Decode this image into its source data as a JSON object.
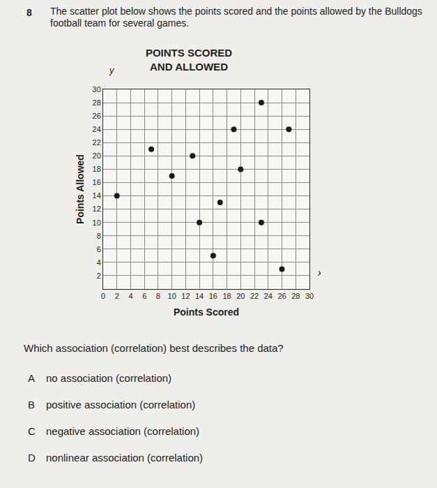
{
  "chart_data": {
    "type": "scatter",
    "title": "POINTS SCORED\nAND ALLOWED",
    "x_label": "Points Scored",
    "y_label": "Points Allowed",
    "annotations": [
      "y",
      "x"
    ],
    "x": [
      23,
      19,
      27,
      7,
      13,
      10,
      20,
      2,
      17,
      14,
      23,
      16,
      26
    ],
    "values": [
      28,
      24,
      24,
      21,
      20,
      17,
      18,
      14,
      13,
      10,
      10,
      5,
      3
    ],
    "color": "#1a1a1a",
    "marker": "circle",
    "xlim": [
      0,
      30
    ],
    "ylim": [
      0,
      30
    ],
    "xticks": [
      0,
      2,
      4,
      6,
      8,
      10,
      12,
      14,
      16,
      18,
      20,
      22,
      24,
      26,
      28,
      30
    ],
    "yticks": [
      2,
      4,
      6,
      8,
      10,
      12,
      14,
      16,
      18,
      20,
      22,
      24,
      26,
      28,
      30
    ],
    "grid": true
  },
  "question": {
    "number": "8",
    "prompt": "The scatter plot below shows the points scored and the points allowed by the Bulldogs football team for several games.",
    "ask": "Which association (correlation) best describes the data?",
    "options": [
      [
        "A",
        "no association (correlation)"
      ],
      [
        "B",
        "positive association (correlation)"
      ],
      [
        "C",
        "negative association (correlation)"
      ],
      [
        "D",
        "nonlinear association (correlation)"
      ]
    ]
  }
}
